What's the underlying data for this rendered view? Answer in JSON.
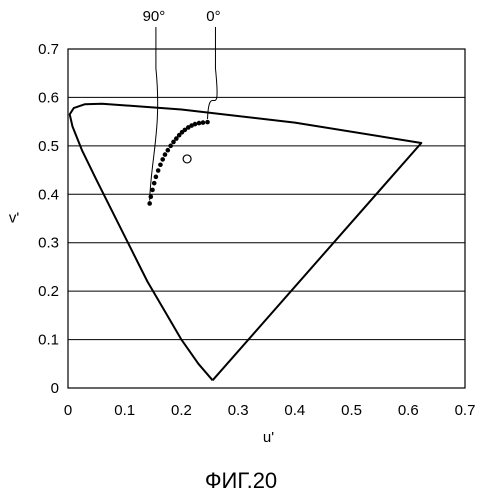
{
  "chart_data": {
    "type": "scatter",
    "title": "",
    "caption": "ФИГ.20",
    "xlabel": "u'",
    "ylabel": "v'",
    "xlim": [
      0,
      0.7
    ],
    "ylim": [
      0,
      0.7
    ],
    "xticks": [
      "0",
      "0.1",
      "0.2",
      "0.3",
      "0.4",
      "0.5",
      "0.6",
      "0.7"
    ],
    "yticks": [
      "0",
      "0.1",
      "0.2",
      "0.3",
      "0.4",
      "0.5",
      "0.6",
      "0.7"
    ],
    "grid": "horizontal",
    "gamut_boundary": [
      [
        0.255,
        0.016
      ],
      [
        0.23,
        0.05
      ],
      [
        0.2,
        0.1
      ],
      [
        0.17,
        0.16
      ],
      [
        0.14,
        0.22
      ],
      [
        0.11,
        0.29
      ],
      [
        0.08,
        0.36
      ],
      [
        0.05,
        0.43
      ],
      [
        0.025,
        0.49
      ],
      [
        0.008,
        0.54
      ],
      [
        0.003,
        0.565
      ],
      [
        0.01,
        0.578
      ],
      [
        0.03,
        0.586
      ],
      [
        0.06,
        0.587
      ],
      [
        0.2,
        0.575
      ],
      [
        0.4,
        0.548
      ],
      [
        0.623,
        0.506
      ],
      [
        0.255,
        0.016
      ]
    ],
    "series": [
      {
        "values": [
          [
            0.246,
            0.549
          ],
          [
            0.238,
            0.548
          ],
          [
            0.231,
            0.547
          ],
          [
            0.224,
            0.545
          ],
          [
            0.218,
            0.542
          ],
          [
            0.212,
            0.538
          ],
          [
            0.206,
            0.533
          ],
          [
            0.201,
            0.528
          ],
          [
            0.196,
            0.522
          ],
          [
            0.191,
            0.515
          ],
          [
            0.186,
            0.508
          ],
          [
            0.181,
            0.5
          ],
          [
            0.176,
            0.491
          ],
          [
            0.171,
            0.482
          ],
          [
            0.167,
            0.472
          ],
          [
            0.163,
            0.461
          ],
          [
            0.159,
            0.449
          ],
          [
            0.155,
            0.436
          ],
          [
            0.152,
            0.423
          ],
          [
            0.149,
            0.409
          ],
          [
            0.146,
            0.395
          ],
          [
            0.144,
            0.381
          ]
        ]
      }
    ],
    "white_point": [
      0.21,
      0.473
    ],
    "annotations": [
      {
        "text": "90°",
        "points": [
          [
            0.155,
            0.66
          ],
          [
            0.144,
            0.381
          ]
        ]
      },
      {
        "text": "0°",
        "points": [
          [
            0.26,
            0.66
          ],
          [
            0.246,
            0.549
          ]
        ]
      }
    ]
  }
}
